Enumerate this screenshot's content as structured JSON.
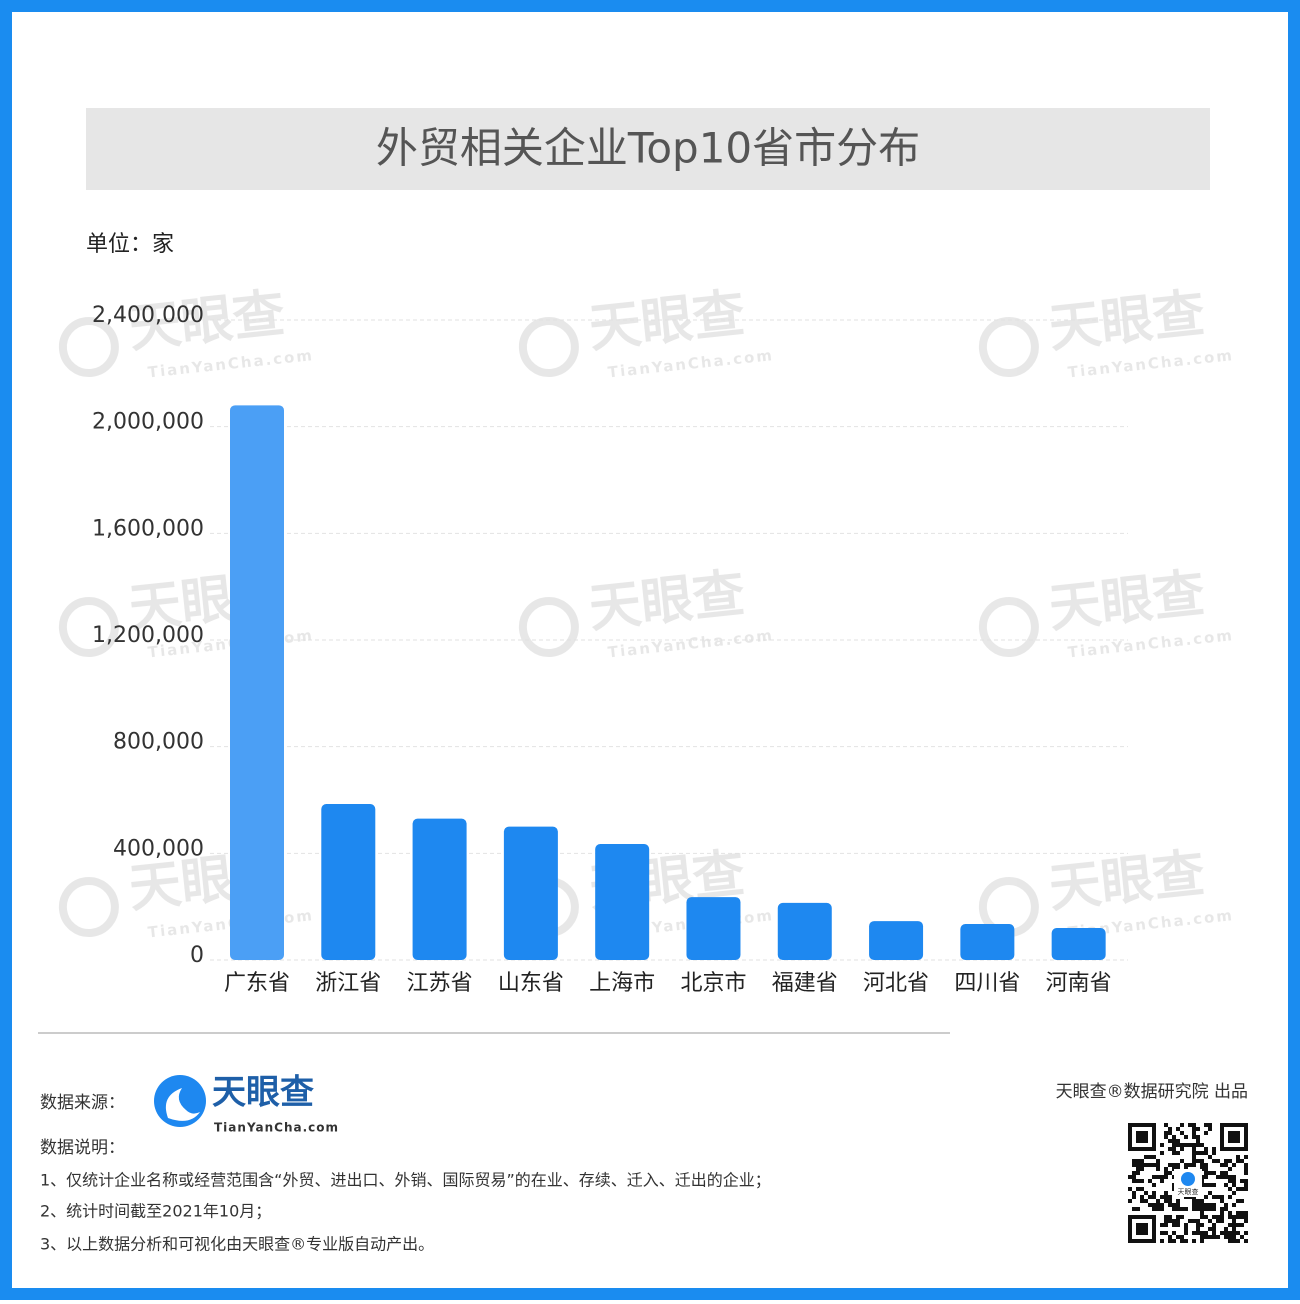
{
  "chart_data": {
    "type": "bar",
    "title": "外贸相关企业Top10省市分布",
    "unit_label": "单位：家",
    "categories": [
      "广东省",
      "浙江省",
      "江苏省",
      "山东省",
      "上海市",
      "北京市",
      "福建省",
      "河北省",
      "四川省",
      "河南省"
    ],
    "values": [
      2080000,
      585000,
      530000,
      500000,
      435000,
      236000,
      214000,
      146000,
      135000,
      120000
    ],
    "colors": [
      "#4b9ff5",
      "#1e88f0",
      "#1e88f0",
      "#1e88f0",
      "#1e88f0",
      "#1e88f0",
      "#1e88f0",
      "#1e88f0",
      "#1e88f0",
      "#1e88f0"
    ],
    "ylim": [
      0,
      2400000
    ],
    "yticks": [
      0,
      {
        "value": 400000,
        "label": "400,000"
      },
      {
        "value": 800000,
        "label": "800,000"
      },
      {
        "value": 1200000,
        "label": "1,200,000"
      },
      {
        "value": 1600000,
        "label": "1,600,000"
      },
      {
        "value": 2000000,
        "label": "2,000,000"
      },
      {
        "value": 2400000,
        "label": "2,400,000"
      }
    ],
    "grid": true
  },
  "watermark": {
    "name": "天眼查",
    "url": "TianYanCha.com"
  },
  "footer": {
    "source_label": "数据来源：",
    "logo_name": "天眼查",
    "logo_url": "TianYanCha.com",
    "notes_title": "数据说明：",
    "notes": [
      "1、仅统计企业名称或经营范围含“外贸、进出口、外销、国际贸易”的在业、存续、迁入、迁出的企业；",
      "2、统计时间截至2021年10月；",
      "3、以上数据分析和可视化由天眼查®专业版自动产出。"
    ],
    "producer": "天眼查®数据研究院 出品",
    "qr_label": "天眼查"
  }
}
